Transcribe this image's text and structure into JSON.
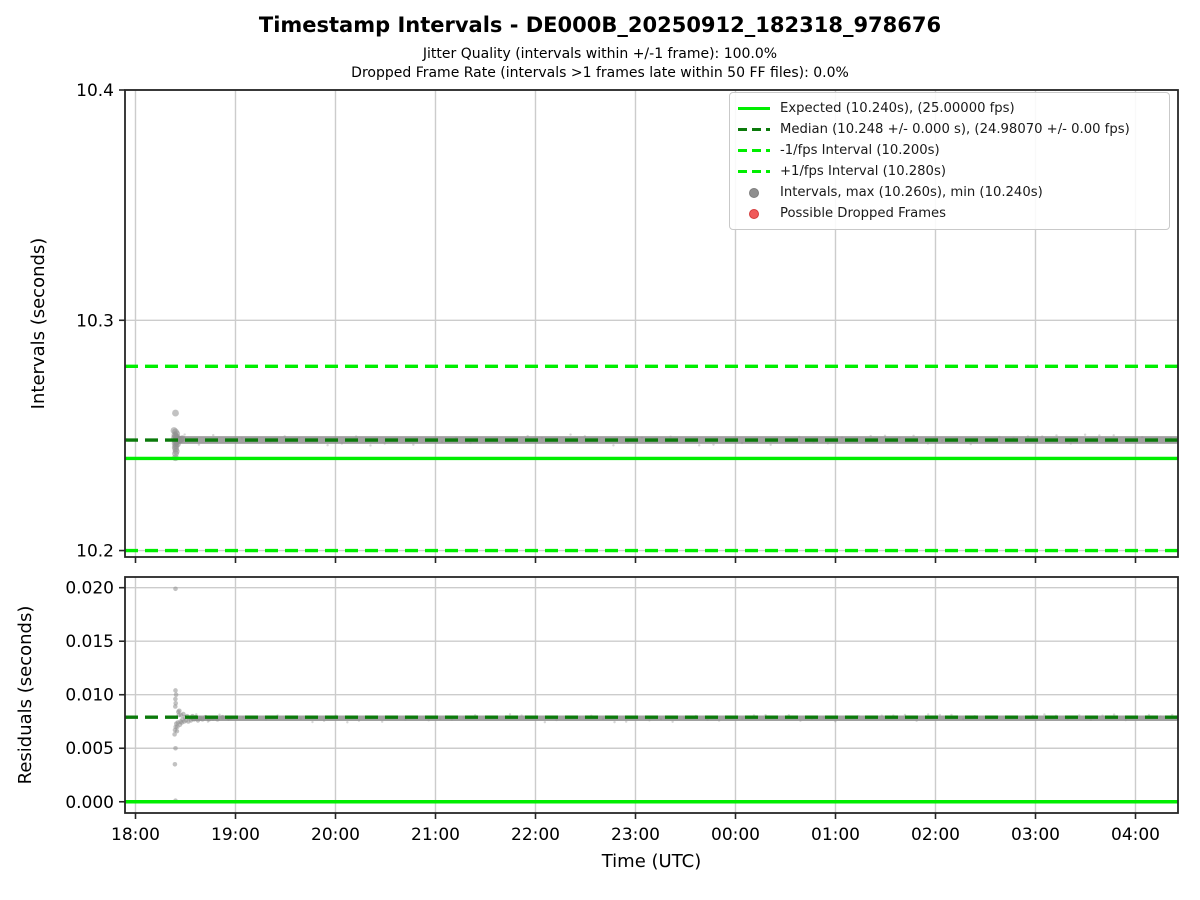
{
  "title": "Timestamp Intervals - DE000B_20250912_182318_978676",
  "subtitle1": "Jitter Quality (intervals within +/-1 frame): 100.0%",
  "subtitle2": "Dropped Frame Rate (intervals >1 frames late within 50 FF files): 0.0%",
  "colors": {
    "lime": "#00ee00",
    "green": "#0b7a0b",
    "gray": "#8f8f8f",
    "red": "#f05a5a",
    "red_edge": "#d43c3c",
    "grid": "#cccccc",
    "spine": "#262626",
    "text": "#000000"
  },
  "x_axis": {
    "label": "Time (UTC)",
    "xlim": [
      17.895,
      28.425
    ],
    "ticks": [
      18,
      19,
      20,
      21,
      22,
      23,
      24,
      25,
      26,
      27,
      28
    ],
    "tick_labels": [
      "18:00",
      "19:00",
      "20:00",
      "21:00",
      "22:00",
      "23:00",
      "00:00",
      "01:00",
      "02:00",
      "03:00",
      "04:00"
    ]
  },
  "legend": {
    "items": [
      {
        "name": "expected",
        "marker": "line-solid",
        "color": "lime",
        "label": "Expected (10.240s), (25.00000 fps)"
      },
      {
        "name": "median",
        "marker": "line-dashed",
        "color": "green",
        "label": "Median (10.248 +/- 0.000 s), (24.98070 +/- 0.00 fps)"
      },
      {
        "name": "minus-1fps",
        "marker": "line-dashed",
        "color": "lime",
        "label": "-1/fps Interval (10.200s)"
      },
      {
        "name": "plus-1fps",
        "marker": "line-dashed",
        "color": "lime",
        "label": "+1/fps Interval (10.280s)"
      },
      {
        "name": "intervals",
        "marker": "dot",
        "color": "gray",
        "label": "Intervals, max (10.260s), min (10.240s)"
      },
      {
        "name": "dropped-frames",
        "marker": "dot",
        "color": "red",
        "label": "Possible Dropped Frames"
      }
    ]
  },
  "chart_data": [
    {
      "type": "scatter",
      "ylabel": "Intervals (seconds)",
      "ylim": [
        10.1972,
        10.4
      ],
      "yticks": [
        10.2,
        10.3,
        10.4
      ],
      "ytick_labels": [
        "10.2",
        "10.3",
        "10.4"
      ],
      "stats": {
        "expected_s": 10.24,
        "expected_fps": 25.0,
        "median_s": 10.248,
        "median_fps": 24.9807,
        "max_s": 10.26,
        "min_s": 10.24
      },
      "lines": [
        {
          "name": "expected",
          "value": 10.24,
          "style": "solid",
          "color": "lime"
        },
        {
          "name": "minus-1fps",
          "value": 10.2,
          "style": "dashed",
          "color": "lime"
        },
        {
          "name": "plus-1fps",
          "value": 10.28,
          "style": "dashed",
          "color": "lime"
        },
        {
          "name": "median",
          "value": 10.248,
          "style": "dashed",
          "color": "green"
        }
      ],
      "band": {
        "y": 10.248,
        "half": 0.0017,
        "x_start": 18.42,
        "x_end": 28.425,
        "fuzz_count": 70,
        "fuzz_spread": 11
      },
      "points": [
        [
          18.4,
          10.2597
        ],
        [
          18.385,
          10.2521
        ],
        [
          18.4,
          10.2516
        ],
        [
          18.412,
          10.2507
        ],
        [
          18.394,
          10.2501
        ],
        [
          18.401,
          10.2496
        ],
        [
          18.416,
          10.2492
        ],
        [
          18.39,
          10.2489
        ],
        [
          18.406,
          10.2486
        ],
        [
          18.421,
          10.2483
        ],
        [
          18.432,
          10.2481
        ],
        [
          18.443,
          10.2479
        ],
        [
          18.455,
          10.2483
        ],
        [
          18.468,
          10.2486
        ],
        [
          18.4,
          10.2476
        ],
        [
          18.411,
          10.2471
        ],
        [
          18.396,
          10.2466
        ],
        [
          18.42,
          10.2463
        ],
        [
          18.405,
          10.2457
        ],
        [
          18.398,
          10.2449
        ],
        [
          18.402,
          10.2441
        ],
        [
          18.407,
          10.2431
        ],
        [
          18.4,
          10.2421
        ],
        [
          18.399,
          10.2403
        ]
      ]
    },
    {
      "type": "scatter",
      "ylabel": "Residuals (seconds)",
      "ylim": [
        -0.00105,
        0.021
      ],
      "yticks": [
        0.0,
        0.005,
        0.01,
        0.015,
        0.02
      ],
      "ytick_labels": [
        "0.000",
        "0.005",
        "0.010",
        "0.015",
        "0.020"
      ],
      "lines": [
        {
          "name": "expected",
          "value": 0.0,
          "style": "solid",
          "color": "lime"
        },
        {
          "name": "median",
          "value": 0.0079,
          "style": "dashed",
          "color": "green"
        }
      ],
      "band": {
        "y": 0.0078,
        "half": 0.00026,
        "x_start": 18.55,
        "x_end": 28.425,
        "fuzz_count": 85,
        "fuzz_spread": 8
      },
      "points": [
        [
          18.4,
          0.0199
        ],
        [
          18.4,
          0.0104
        ],
        [
          18.406,
          0.01
        ],
        [
          18.399,
          0.0096
        ],
        [
          18.402,
          0.0092
        ],
        [
          18.398,
          0.0089
        ],
        [
          18.391,
          0.0063
        ],
        [
          18.395,
          0.0067
        ],
        [
          18.402,
          0.007
        ],
        [
          18.408,
          0.0073
        ],
        [
          18.414,
          0.0066
        ],
        [
          18.418,
          0.007
        ],
        [
          18.423,
          0.0074
        ],
        [
          18.428,
          0.0084
        ],
        [
          18.433,
          0.0081
        ],
        [
          18.438,
          0.0085
        ],
        [
          18.444,
          0.0072
        ],
        [
          18.45,
          0.0075
        ],
        [
          18.456,
          0.0081
        ],
        [
          18.463,
          0.0074
        ],
        [
          18.47,
          0.0077
        ],
        [
          18.478,
          0.0082
        ],
        [
          18.486,
          0.0075
        ],
        [
          18.495,
          0.0079
        ],
        [
          18.505,
          0.0076
        ],
        [
          18.516,
          0.008
        ],
        [
          18.528,
          0.0075
        ],
        [
          18.541,
          0.0078
        ],
        [
          18.555,
          0.0076
        ],
        [
          18.57,
          0.008
        ],
        [
          18.586,
          0.0077
        ],
        [
          18.604,
          0.0079
        ],
        [
          18.624,
          0.0076
        ],
        [
          18.646,
          0.0078
        ],
        [
          18.67,
          0.0077
        ],
        [
          18.7,
          0.0079
        ],
        [
          18.735,
          0.0077
        ],
        [
          18.775,
          0.0078
        ],
        [
          18.82,
          0.0077
        ],
        [
          18.87,
          0.0079
        ],
        [
          18.93,
          0.0078
        ],
        [
          18.4,
          0.005
        ],
        [
          18.394,
          0.0035
        ],
        [
          18.4,
          0.0001
        ]
      ]
    }
  ]
}
